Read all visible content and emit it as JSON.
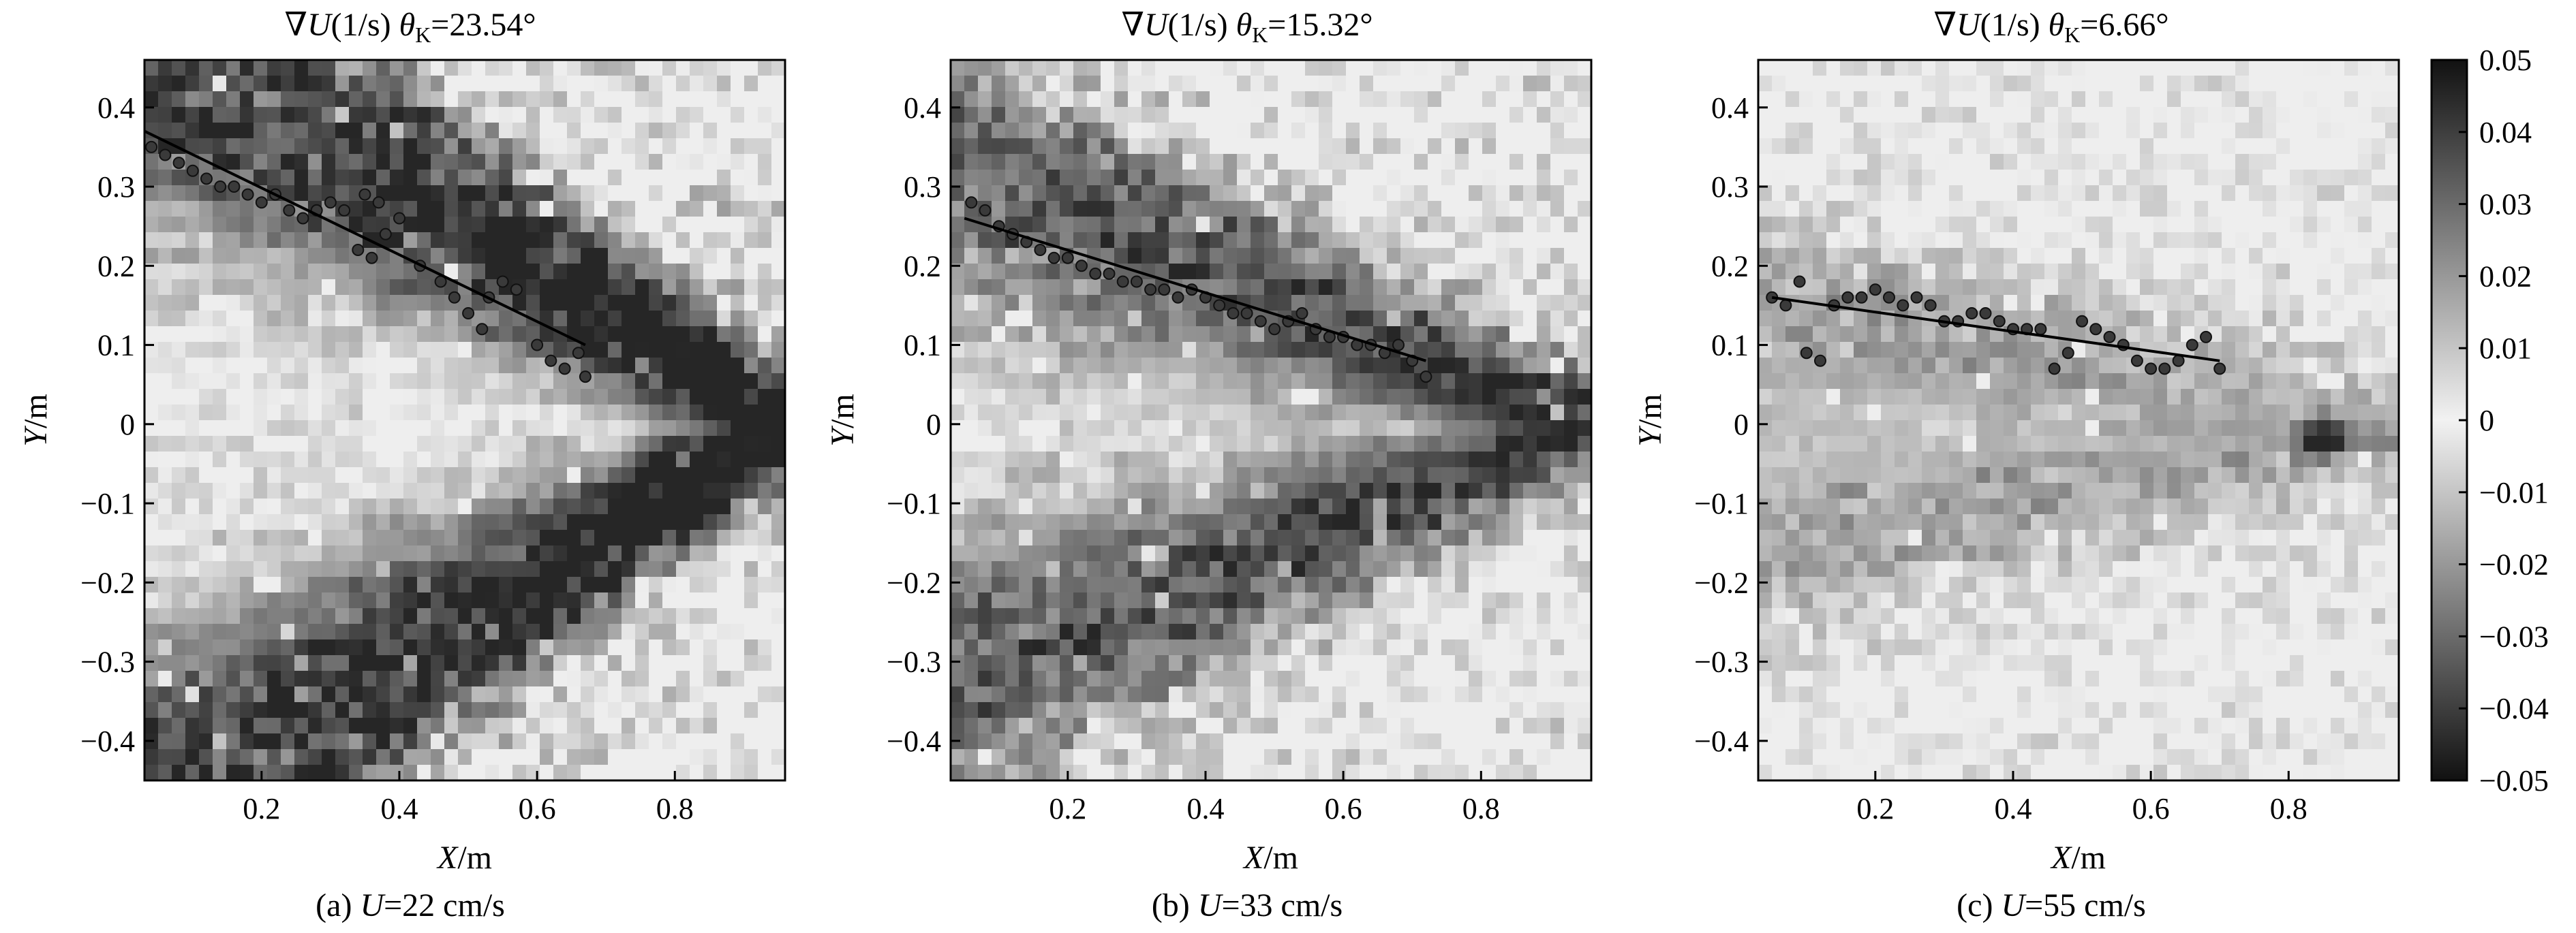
{
  "colorbar": {
    "range": [
      -0.05,
      0.05
    ],
    "ticks": [
      0.05,
      0.04,
      0.03,
      0.02,
      0.01,
      0,
      -0.01,
      -0.02,
      -0.03,
      -0.04,
      -0.05
    ],
    "tick_labels": [
      "0.05",
      "0.04",
      "0.03",
      "0.02",
      "0.01",
      "0",
      "−0.01",
      "−0.02",
      "−0.03",
      "−0.04",
      "−0.05"
    ],
    "colormap": "gray (dark = positive, light = negative)"
  },
  "chart_data": [
    {
      "type": "heatmap",
      "title": {
        "prefix": "∇",
        "var": "U",
        "unit": "(1/s) ",
        "theta": "θ",
        "theta_sub": "K",
        "theta_val": "=23.54°"
      },
      "caption": {
        "letter": "(a) ",
        "var": "U",
        "rest": "=22 cm/s"
      },
      "xlabel": {
        "var": "X",
        "unit": "/m"
      },
      "ylabel": {
        "var": "Y",
        "unit": "/m"
      },
      "xlim": [
        0.03,
        0.96
      ],
      "ylim": [
        -0.45,
        0.46
      ],
      "xticks": [
        0.2,
        0.4,
        0.6,
        0.8
      ],
      "xtick_labels": [
        "0.2",
        "0.4",
        "0.6",
        "0.8"
      ],
      "yticks": [
        0.4,
        0.3,
        0.2,
        0.1,
        0,
        -0.1,
        -0.2,
        -0.3,
        -0.4
      ],
      "ytick_labels": [
        "0.4",
        "0.3",
        "0.2",
        "0.1",
        "0",
        "−0.1",
        "−0.2",
        "−0.3",
        "−0.4"
      ],
      "kelvin_angle_deg": 23.54,
      "field": {
        "wake_center_x": 0.96,
        "wake_half_angle_deg": 23.54,
        "band_intensity": 0.85,
        "noise": 0.55,
        "hotspot": null
      },
      "fit_line": {
        "x": [
          0.03,
          0.67
        ],
        "y": [
          0.37,
          0.1
        ]
      },
      "crest_points": [
        [
          0.04,
          0.35
        ],
        [
          0.06,
          0.34
        ],
        [
          0.08,
          0.33
        ],
        [
          0.1,
          0.32
        ],
        [
          0.12,
          0.31
        ],
        [
          0.14,
          0.3
        ],
        [
          0.16,
          0.3
        ],
        [
          0.18,
          0.29
        ],
        [
          0.2,
          0.28
        ],
        [
          0.22,
          0.29
        ],
        [
          0.24,
          0.27
        ],
        [
          0.26,
          0.26
        ],
        [
          0.28,
          0.27
        ],
        [
          0.3,
          0.28
        ],
        [
          0.32,
          0.27
        ],
        [
          0.35,
          0.29
        ],
        [
          0.37,
          0.28
        ],
        [
          0.34,
          0.22
        ],
        [
          0.36,
          0.21
        ],
        [
          0.38,
          0.24
        ],
        [
          0.4,
          0.26
        ],
        [
          0.43,
          0.2
        ],
        [
          0.46,
          0.18
        ],
        [
          0.48,
          0.16
        ],
        [
          0.5,
          0.14
        ],
        [
          0.52,
          0.12
        ],
        [
          0.53,
          0.16
        ],
        [
          0.55,
          0.18
        ],
        [
          0.57,
          0.17
        ],
        [
          0.6,
          0.1
        ],
        [
          0.62,
          0.08
        ],
        [
          0.64,
          0.07
        ],
        [
          0.66,
          0.09
        ],
        [
          0.67,
          0.06
        ]
      ]
    },
    {
      "type": "heatmap",
      "title": {
        "prefix": "∇",
        "var": "U",
        "unit": "(1/s) ",
        "theta": "θ",
        "theta_sub": "K",
        "theta_val": "=15.32°"
      },
      "caption": {
        "letter": "(b) ",
        "var": "U",
        "rest": "=33 cm/s"
      },
      "xlabel": {
        "var": "X",
        "unit": "/m"
      },
      "ylabel": {
        "var": "Y",
        "unit": "/m"
      },
      "xlim": [
        0.03,
        0.96
      ],
      "ylim": [
        -0.45,
        0.46
      ],
      "xticks": [
        0.2,
        0.4,
        0.6,
        0.8
      ],
      "xtick_labels": [
        "0.2",
        "0.4",
        "0.6",
        "0.8"
      ],
      "yticks": [
        0.4,
        0.3,
        0.2,
        0.1,
        0,
        -0.1,
        -0.2,
        -0.3,
        -0.4
      ],
      "ytick_labels": [
        "0.4",
        "0.3",
        "0.2",
        "0.1",
        "0",
        "−0.1",
        "−0.2",
        "−0.3",
        "−0.4"
      ],
      "kelvin_angle_deg": 15.32,
      "field": {
        "wake_center_x": 0.96,
        "wake_half_angle_deg": 15.32,
        "band_intensity": 0.6,
        "noise": 0.45,
        "hotspot": null
      },
      "fit_line": {
        "x": [
          0.05,
          0.72
        ],
        "y": [
          0.26,
          0.08
        ]
      },
      "crest_points": [
        [
          0.06,
          0.28
        ],
        [
          0.08,
          0.27
        ],
        [
          0.1,
          0.25
        ],
        [
          0.12,
          0.24
        ],
        [
          0.14,
          0.23
        ],
        [
          0.16,
          0.22
        ],
        [
          0.18,
          0.21
        ],
        [
          0.2,
          0.21
        ],
        [
          0.22,
          0.2
        ],
        [
          0.24,
          0.19
        ],
        [
          0.26,
          0.19
        ],
        [
          0.28,
          0.18
        ],
        [
          0.3,
          0.18
        ],
        [
          0.32,
          0.17
        ],
        [
          0.34,
          0.17
        ],
        [
          0.36,
          0.16
        ],
        [
          0.38,
          0.17
        ],
        [
          0.4,
          0.16
        ],
        [
          0.42,
          0.15
        ],
        [
          0.44,
          0.14
        ],
        [
          0.46,
          0.14
        ],
        [
          0.48,
          0.13
        ],
        [
          0.5,
          0.12
        ],
        [
          0.52,
          0.13
        ],
        [
          0.54,
          0.14
        ],
        [
          0.56,
          0.12
        ],
        [
          0.58,
          0.11
        ],
        [
          0.6,
          0.11
        ],
        [
          0.62,
          0.1
        ],
        [
          0.64,
          0.1
        ],
        [
          0.66,
          0.09
        ],
        [
          0.68,
          0.1
        ],
        [
          0.7,
          0.08
        ],
        [
          0.72,
          0.06
        ]
      ]
    },
    {
      "type": "heatmap",
      "title": {
        "prefix": "∇",
        "var": "U",
        "unit": "(1/s) ",
        "theta": "θ",
        "theta_sub": "K",
        "theta_val": "=6.66°"
      },
      "caption": {
        "letter": "(c) ",
        "var": "U",
        "rest": "=55 cm/s"
      },
      "xlabel": {
        "var": "X",
        "unit": "/m"
      },
      "ylabel": {
        "var": "Y",
        "unit": "/m"
      },
      "xlim": [
        0.03,
        0.96
      ],
      "ylim": [
        -0.45,
        0.46
      ],
      "xticks": [
        0.2,
        0.4,
        0.6,
        0.8
      ],
      "xtick_labels": [
        "0.2",
        "0.4",
        "0.6",
        "0.8"
      ],
      "yticks": [
        0.4,
        0.3,
        0.2,
        0.1,
        0,
        -0.1,
        -0.2,
        -0.3,
        -0.4
      ],
      "ytick_labels": [
        "0.4",
        "0.3",
        "0.2",
        "0.1",
        "0",
        "−0.1",
        "−0.2",
        "−0.3",
        "−0.4"
      ],
      "kelvin_angle_deg": 6.66,
      "field": {
        "wake_center_x": 0.96,
        "wake_half_angle_deg": 6.66,
        "band_intensity": 0.25,
        "noise": 0.3,
        "hotspot": [
          0.85,
          -0.02
        ]
      },
      "fit_line": {
        "x": [
          0.05,
          0.7
        ],
        "y": [
          0.16,
          0.08
        ]
      },
      "crest_points": [
        [
          0.05,
          0.16
        ],
        [
          0.07,
          0.15
        ],
        [
          0.09,
          0.18
        ],
        [
          0.1,
          0.09
        ],
        [
          0.12,
          0.08
        ],
        [
          0.14,
          0.15
        ],
        [
          0.16,
          0.16
        ],
        [
          0.18,
          0.16
        ],
        [
          0.2,
          0.17
        ],
        [
          0.22,
          0.16
        ],
        [
          0.24,
          0.15
        ],
        [
          0.26,
          0.16
        ],
        [
          0.28,
          0.15
        ],
        [
          0.3,
          0.13
        ],
        [
          0.32,
          0.13
        ],
        [
          0.34,
          0.14
        ],
        [
          0.36,
          0.14
        ],
        [
          0.38,
          0.13
        ],
        [
          0.4,
          0.12
        ],
        [
          0.42,
          0.12
        ],
        [
          0.44,
          0.12
        ],
        [
          0.46,
          0.07
        ],
        [
          0.48,
          0.09
        ],
        [
          0.5,
          0.13
        ],
        [
          0.52,
          0.12
        ],
        [
          0.54,
          0.11
        ],
        [
          0.56,
          0.1
        ],
        [
          0.58,
          0.08
        ],
        [
          0.6,
          0.07
        ],
        [
          0.62,
          0.07
        ],
        [
          0.64,
          0.08
        ],
        [
          0.66,
          0.1
        ],
        [
          0.68,
          0.11
        ],
        [
          0.7,
          0.07
        ]
      ]
    }
  ]
}
